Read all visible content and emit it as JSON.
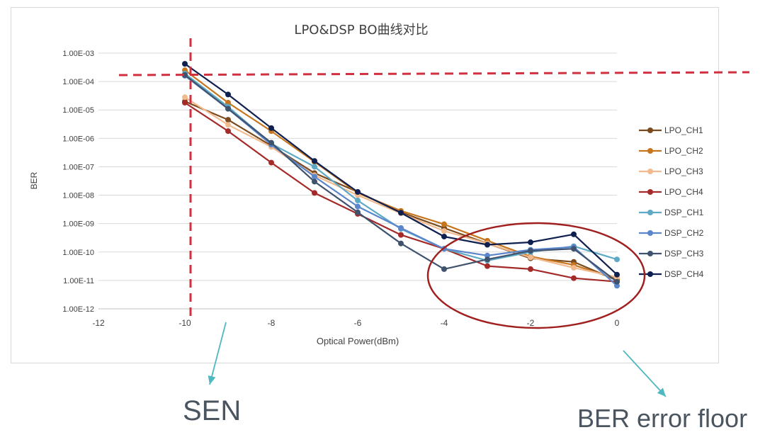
{
  "chart_data": {
    "type": "line",
    "title": "LPO&DSP BO曲线对比",
    "xlabel": "Optical Power(dBm)",
    "ylabel": "BER",
    "xlim": [
      -12,
      0
    ],
    "x_ticks": [
      "-12",
      "-10",
      "-8",
      "-6",
      "-4",
      "-2",
      "0"
    ],
    "ylim": [
      1e-12,
      0.001
    ],
    "y_scale": "log",
    "y_ticks": [
      "1.00E-12",
      "1.00E-11",
      "1.00E-10",
      "1.00E-09",
      "1.00E-08",
      "1.00E-07",
      "1.00E-06",
      "1.00E-05",
      "1.00E-04",
      "1.00E-03"
    ],
    "grid": "horizontal",
    "legend_position": "right",
    "x": [
      -10,
      -9,
      -8,
      -7,
      -6,
      -5,
      -4,
      -3,
      -2,
      -1,
      0
    ],
    "series": [
      {
        "name": "LPO_CH1",
        "color": "#7b4a1e",
        "values": [
          2e-05,
          4.5e-06,
          5.5e-07,
          6e-08,
          1.3e-08,
          2.5e-09,
          7e-10,
          2e-10,
          6e-11,
          4.5e-11,
          1e-11
        ]
      },
      {
        "name": "LPO_CH2",
        "color": "#c6761e",
        "values": [
          0.00025,
          1.8e-05,
          1.8e-06,
          1.5e-07,
          1.2e-08,
          2.8e-09,
          9.5e-10,
          2.5e-10,
          7e-11,
          3.5e-11,
          1.1e-11
        ]
      },
      {
        "name": "LPO_CH3",
        "color": "#f2bb8f",
        "values": [
          2.8e-05,
          3e-06,
          5e-07,
          5e-08,
          1e-08,
          2.3e-09,
          5.5e-10,
          2e-10,
          6.5e-11,
          2.8e-11,
          1.3e-11
        ]
      },
      {
        "name": "LPO_CH4",
        "color": "#a52a2a",
        "values": [
          1.8e-05,
          1.8e-06,
          1.4e-07,
          1.2e-08,
          2.2e-09,
          4e-10,
          1.3e-10,
          3.2e-11,
          2.5e-11,
          1.2e-11,
          9e-12
        ]
      },
      {
        "name": "DSP_CH1",
        "color": "#5ea9c5",
        "values": [
          0.00019,
          1.3e-05,
          6.5e-07,
          1e-07,
          6.5e-09,
          6.5e-10,
          1.3e-10,
          5e-11,
          1e-10,
          1.6e-10,
          5.5e-11
        ]
      },
      {
        "name": "DSP_CH2",
        "color": "#5b86cc",
        "values": [
          0.00016,
          1.1e-05,
          6e-07,
          4.5e-08,
          4e-09,
          7e-10,
          1.3e-10,
          7.5e-11,
          1.2e-10,
          1.5e-10,
          6.5e-12
        ]
      },
      {
        "name": "DSP_CH3",
        "color": "#3f536f",
        "values": [
          0.00017,
          1.1e-05,
          7e-07,
          3e-08,
          2.5e-09,
          2e-10,
          2.5e-11,
          5.5e-11,
          1.1e-10,
          1.3e-10,
          9e-12
        ]
      },
      {
        "name": "DSP_CH4",
        "color": "#0f1f4f",
        "values": [
          0.00042,
          3.5e-05,
          2.3e-06,
          1.6e-07,
          1.3e-08,
          2.4e-09,
          3.5e-10,
          1.8e-10,
          2.2e-10,
          4.2e-10,
          1.6e-11
        ]
      }
    ]
  },
  "annotations": {
    "sen_label": "SEN",
    "floor_label": "BER error floor",
    "sen_line_color": "#d03040",
    "floor_ellipse_color": "#a02020",
    "arrow_color": "#4fb8c0"
  }
}
